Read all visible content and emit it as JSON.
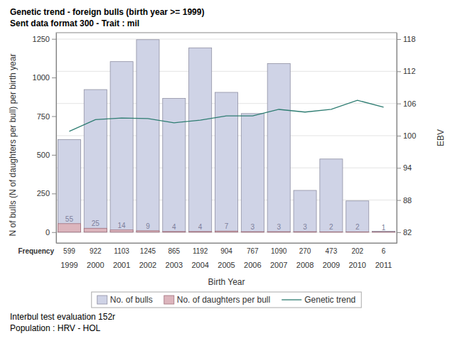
{
  "chart_data": {
    "type": "bar",
    "title": "Genetic trend - foreign bulls (birth year >= 1999)",
    "subtitle": "Sent data format 300 - Trait : mil",
    "x_label": "Birth Year",
    "y_label": "N of bulls (N of daughters per bull) per birth year",
    "y2_label": "EBV",
    "frequency_label": "Frequency",
    "footer": [
      "Interbul test evaluation 152r",
      "Population : HRV - HOL"
    ],
    "categories": [
      "1999",
      "2000",
      "2001",
      "2002",
      "2003",
      "2004",
      "2005",
      "2006",
      "2007",
      "2008",
      "2009",
      "2010",
      "2011"
    ],
    "series": [
      {
        "name": "No. of bulls",
        "type": "bar",
        "color": "#cfd3e6",
        "values": [
          599,
          922,
          1103,
          1245,
          865,
          1192,
          904,
          767,
          1090,
          270,
          473,
          202,
          6
        ]
      },
      {
        "name": "No. of daughters per bull",
        "type": "bar",
        "color": "#dcb5bd",
        "data_labels": true,
        "values": [
          55,
          25,
          14,
          9,
          4,
          4,
          7,
          3,
          3,
          3,
          2,
          2,
          1
        ]
      },
      {
        "name": "Genetic trend",
        "type": "line",
        "axis": "y2",
        "color": "#2e7d72",
        "values": [
          100.8,
          103.0,
          103.3,
          103.2,
          102.4,
          102.9,
          103.7,
          103.7,
          104.9,
          104.4,
          104.9,
          106.6,
          105.3
        ]
      }
    ],
    "ylim": [
      -70,
      1290
    ],
    "yticks": [
      0,
      250,
      500,
      750,
      1000,
      1250
    ],
    "y2lim": [
      80,
      119.2
    ],
    "y2ticks": [
      82,
      88,
      94,
      100,
      106,
      112,
      118
    ],
    "grid": true,
    "legend": "bottom"
  }
}
